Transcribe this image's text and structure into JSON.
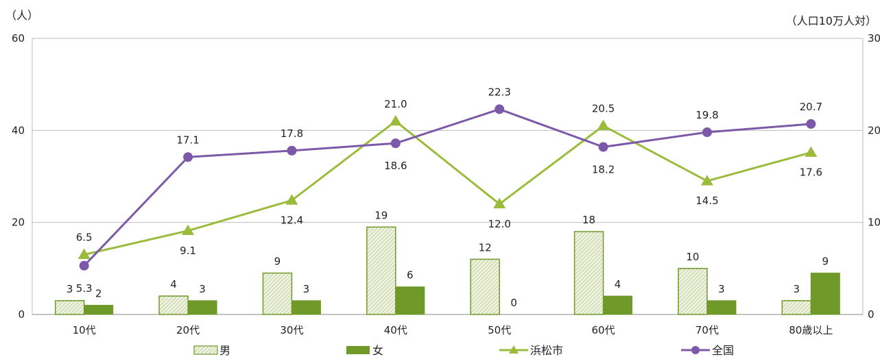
{
  "chart_data": {
    "type": "bar",
    "categories": [
      "10代",
      "20代",
      "30代",
      "40代",
      "50代",
      "60代",
      "70代",
      "80歳以上"
    ],
    "left_axis": {
      "unit": "（人）",
      "ylim": [
        0,
        60
      ],
      "ticks": [
        "0",
        "20",
        "40",
        "60"
      ]
    },
    "right_axis": {
      "unit": "（人口10万人対）",
      "ylim": [
        0,
        30
      ],
      "ticks": [
        "0",
        "10",
        "20",
        "30"
      ]
    },
    "grid": true,
    "legend_position": "bottom",
    "series": [
      {
        "name": "男",
        "type": "bar",
        "axis": "left",
        "color": "#6f9a2a",
        "fill": "hatched-light",
        "values": [
          3,
          4,
          9,
          19,
          12,
          18,
          10,
          3
        ]
      },
      {
        "name": "女",
        "type": "bar",
        "axis": "left",
        "color": "#6f9a2a",
        "fill": "solid",
        "values": [
          2,
          3,
          3,
          6,
          0,
          4,
          3,
          9
        ]
      },
      {
        "name": "浜松市",
        "type": "line",
        "axis": "right",
        "color": "#9bbb3c",
        "marker": "triangle",
        "values": [
          6.5,
          9.1,
          12.4,
          21.0,
          12.0,
          20.5,
          14.5,
          17.6
        ]
      },
      {
        "name": "全国",
        "type": "line",
        "axis": "right",
        "color": "#7b59a8",
        "marker": "circle",
        "values": [
          5.3,
          17.1,
          17.8,
          18.6,
          22.3,
          18.2,
          19.8,
          20.7
        ]
      }
    ]
  }
}
